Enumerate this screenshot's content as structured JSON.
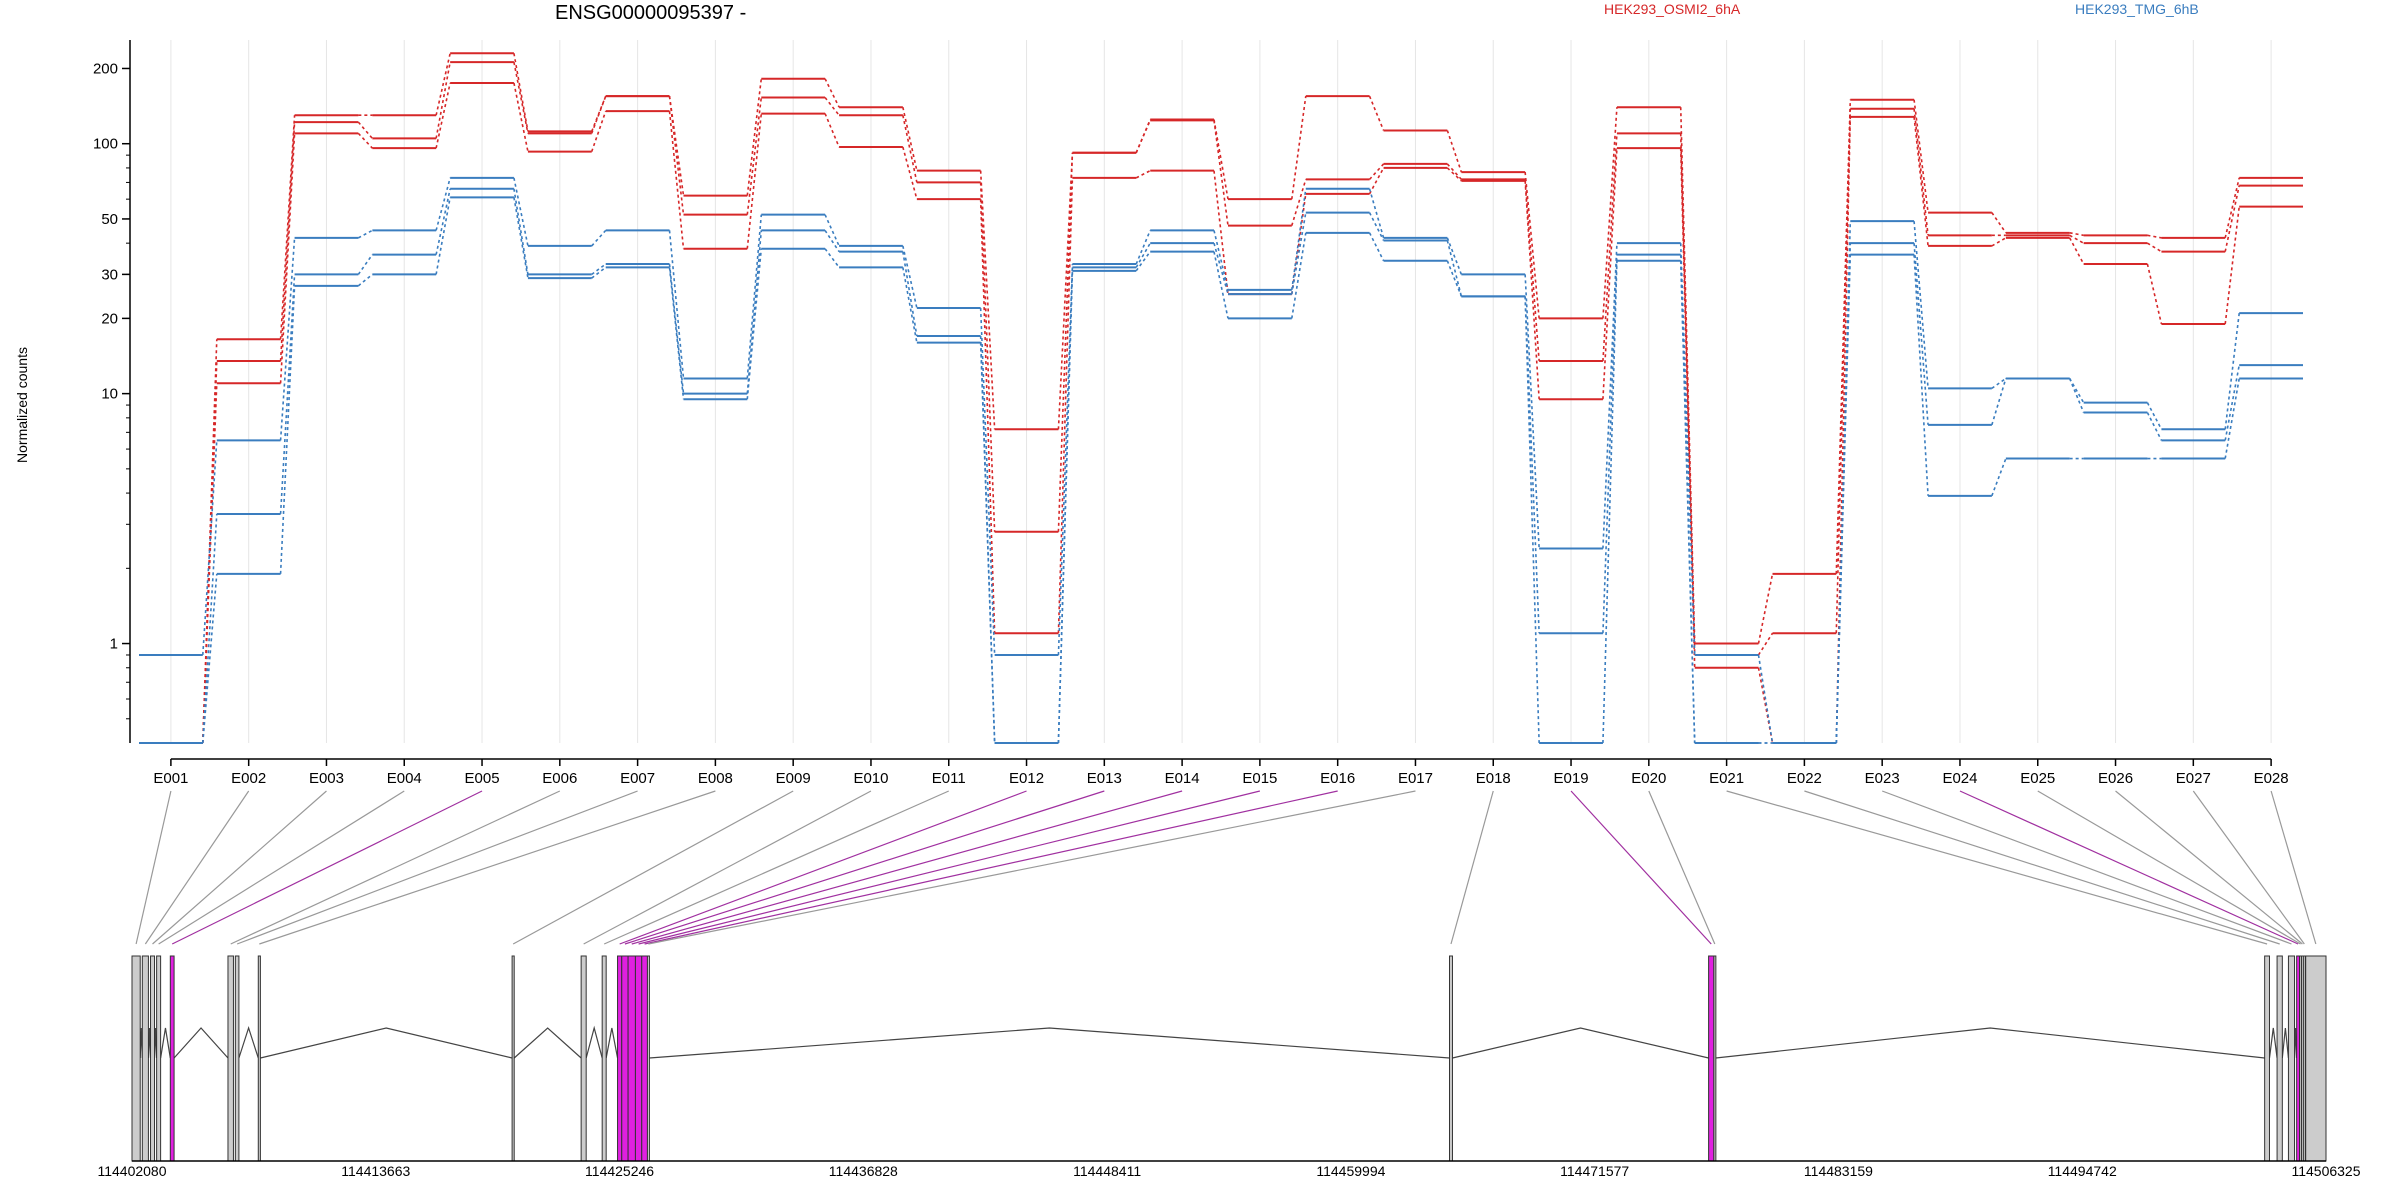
{
  "chart_data": {
    "type": "line",
    "title": "ENSG00000095397 -",
    "ylabel": "Normalized counts",
    "xlabel": "",
    "yscale": "log",
    "ylim": [
      0.4,
      260
    ],
    "yticks": [
      1,
      10,
      20,
      30,
      50,
      100,
      200
    ],
    "grid": "vertical",
    "legend_placement": "top",
    "categories": [
      "E001",
      "E002",
      "E003",
      "E004",
      "E005",
      "E006",
      "E007",
      "E008",
      "E009",
      "E010",
      "E011",
      "E012",
      "E013",
      "E014",
      "E015",
      "E016",
      "E017",
      "E018",
      "E019",
      "E020",
      "E021",
      "E022",
      "E023",
      "E024",
      "E025",
      "E026",
      "E027",
      "E028"
    ],
    "series": [
      {
        "name": "HEK293_OSMI2_6hA",
        "color": "#d62728",
        "values": [
          0.4,
          16.5,
          130,
          130,
          230,
          112,
          155,
          62,
          182,
          140,
          78,
          7.2,
          92,
          125,
          60,
          155,
          113,
          77,
          20,
          140,
          1.0,
          1.9,
          150,
          53,
          44,
          43,
          42,
          73
        ]
      },
      {
        "name": "HEK293_OSMI2_6hA",
        "color": "#d62728",
        "values": [
          0.4,
          13.5,
          122,
          105,
          212,
          110,
          155,
          52,
          153,
          130,
          70,
          2.8,
          92,
          124,
          47,
          72,
          83,
          72,
          13.5,
          110,
          0.9,
          1.1,
          138,
          43,
          43,
          40,
          37,
          68
        ]
      },
      {
        "name": "HEK293_OSMI2_6hA",
        "color": "#d62728",
        "values": [
          0.4,
          11,
          110,
          96,
          175,
          93,
          135,
          38,
          132,
          97,
          60,
          1.1,
          73,
          78,
          25,
          63,
          80,
          71,
          9.5,
          96,
          0.8,
          0.4,
          128,
          39,
          42,
          33,
          19,
          56
        ]
      },
      {
        "name": "HEK293_TMG_6hB",
        "color": "#3a7dbf",
        "values": [
          0.9,
          6.5,
          42,
          45,
          73,
          39,
          45,
          11.5,
          52,
          39,
          22,
          0.9,
          33,
          45,
          26,
          66,
          42,
          30,
          2.4,
          40,
          0.9,
          0.4,
          49,
          10.5,
          11.5,
          9.2,
          7.2,
          21
        ]
      },
      {
        "name": "HEK293_TMG_6hB",
        "color": "#3a7dbf",
        "values": [
          0.4,
          3.3,
          30,
          36,
          66,
          30,
          33,
          10,
          45,
          37,
          17,
          0.4,
          32,
          40,
          25,
          53,
          41,
          24.5,
          1.1,
          36,
          0.4,
          0.4,
          40,
          7.5,
          11.5,
          8.4,
          6.5,
          13
        ]
      },
      {
        "name": "HEK293_TMG_6hB",
        "color": "#3a7dbf",
        "values": [
          0.4,
          1.9,
          27,
          30,
          61,
          29,
          32,
          9.5,
          38,
          32,
          16,
          0.4,
          31,
          37,
          20,
          44,
          34,
          24.5,
          0.4,
          34,
          0.4,
          0.4,
          36,
          3.9,
          5.5,
          5.5,
          5.5,
          11.5
        ]
      }
    ],
    "legend": [
      "HEK293_OSMI2_6hA",
      "HEK293_TMG_6hB"
    ],
    "gene_model": {
      "genomic_start": 114402080,
      "genomic_end": 114506325,
      "axis_tick_labels": [
        "114402080",
        "114413663",
        "114425246",
        "114436828",
        "114448411",
        "114459994",
        "114471577",
        "114483159",
        "114494742",
        "114506325"
      ],
      "exon_highlight_color": "#e020e0",
      "exon_fill_color": "#cccccc",
      "exons": [
        {
          "id": "E001",
          "start": 114402080,
          "end": 114402470,
          "highlight": false
        },
        {
          "id": "E002",
          "start": 114402570,
          "end": 114402860,
          "highlight": false
        },
        {
          "id": "E003",
          "start": 114402960,
          "end": 114403150,
          "highlight": false
        },
        {
          "id": "E004",
          "start": 114403250,
          "end": 114403440,
          "highlight": false
        },
        {
          "id": "E005",
          "start": 114403900,
          "end": 114404080,
          "highlight": true
        },
        {
          "id": "E006",
          "start": 114406640,
          "end": 114406900,
          "highlight": false
        },
        {
          "id": "E007",
          "start": 114406990,
          "end": 114407160,
          "highlight": false
        },
        {
          "id": "E008",
          "start": 114408080,
          "end": 114408180,
          "highlight": false
        },
        {
          "id": "E009",
          "start": 114420140,
          "end": 114420240,
          "highlight": false
        },
        {
          "id": "E010",
          "start": 114423420,
          "end": 114423660,
          "highlight": false
        },
        {
          "id": "E011",
          "start": 114424420,
          "end": 114424610,
          "highlight": false
        },
        {
          "id": "E012",
          "start": 114425150,
          "end": 114425350,
          "highlight": true
        },
        {
          "id": "E013",
          "start": 114425350,
          "end": 114425650,
          "highlight": true
        },
        {
          "id": "E014",
          "start": 114425650,
          "end": 114426000,
          "highlight": true
        },
        {
          "id": "E015",
          "start": 114426000,
          "end": 114426300,
          "highlight": true
        },
        {
          "id": "E016",
          "start": 114426300,
          "end": 114426570,
          "highlight": true
        },
        {
          "id": "E017",
          "start": 114426570,
          "end": 114426660,
          "highlight": false
        },
        {
          "id": "E018",
          "start": 114464680,
          "end": 114464820,
          "highlight": false
        },
        {
          "id": "E019",
          "start": 114476990,
          "end": 114477240,
          "highlight": true
        },
        {
          "id": "E020",
          "start": 114477240,
          "end": 114477330,
          "highlight": false
        },
        {
          "id": "E021",
          "start": 114503410,
          "end": 114503640,
          "highlight": false
        },
        {
          "id": "E022",
          "start": 114504000,
          "end": 114504250,
          "highlight": false
        },
        {
          "id": "E023",
          "start": 114504540,
          "end": 114504830,
          "highlight": false
        },
        {
          "id": "E024",
          "start": 114504930,
          "end": 114505070,
          "highlight": true
        },
        {
          "id": "E025",
          "start": 114505070,
          "end": 114505160,
          "highlight": false
        },
        {
          "id": "E026",
          "start": 114505160,
          "end": 114505250,
          "highlight": false
        },
        {
          "id": "E027",
          "start": 114505250,
          "end": 114505340,
          "highlight": false
        },
        {
          "id": "E028",
          "start": 114505360,
          "end": 114506325,
          "highlight": false
        }
      ]
    }
  }
}
